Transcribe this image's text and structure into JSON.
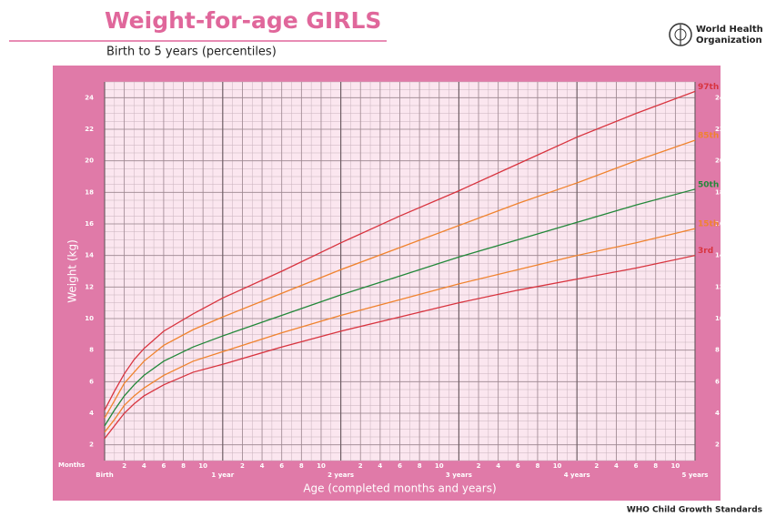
{
  "chart_data": {
    "type": "line",
    "title": "Weight-for-age GIRLS",
    "subtitle": "Birth to 5 years (percentiles)",
    "xlabel": "Age (completed months and years)",
    "ylabel": "Weight (kg)",
    "months_label": "Months",
    "x": [
      0,
      1,
      2,
      3,
      4,
      6,
      9,
      12,
      18,
      24,
      30,
      36,
      42,
      48,
      54,
      60
    ],
    "series": [
      {
        "name": "97th",
        "color": "#d8343f",
        "values": [
          4.2,
          5.4,
          6.5,
          7.4,
          8.1,
          9.2,
          10.3,
          11.3,
          13.0,
          14.8,
          16.5,
          18.1,
          19.8,
          21.5,
          23.0,
          24.4
        ]
      },
      {
        "name": "85th",
        "color": "#f0832e",
        "values": [
          3.7,
          4.8,
          5.9,
          6.6,
          7.3,
          8.3,
          9.3,
          10.1,
          11.6,
          13.1,
          14.5,
          15.9,
          17.3,
          18.6,
          20.0,
          21.3
        ]
      },
      {
        "name": "50th",
        "color": "#23883a",
        "values": [
          3.2,
          4.2,
          5.1,
          5.8,
          6.4,
          7.3,
          8.2,
          8.9,
          10.2,
          11.5,
          12.7,
          13.9,
          15.0,
          16.1,
          17.2,
          18.2
        ]
      },
      {
        "name": "15th",
        "color": "#f0832e",
        "values": [
          2.8,
          3.6,
          4.5,
          5.1,
          5.6,
          6.4,
          7.3,
          7.9,
          9.1,
          10.2,
          11.2,
          12.2,
          13.1,
          14.0,
          14.8,
          15.7
        ]
      },
      {
        "name": "3rd",
        "color": "#d8343f",
        "values": [
          2.4,
          3.2,
          4.0,
          4.6,
          5.1,
          5.8,
          6.6,
          7.1,
          8.2,
          9.2,
          10.1,
          11.0,
          11.8,
          12.5,
          13.2,
          14.0
        ]
      }
    ],
    "xlim": [
      0,
      60
    ],
    "xticks": [
      {
        "value": 0,
        "label": "Birth"
      },
      2,
      4,
      6,
      8,
      10,
      {
        "value": 12,
        "label": "1 year"
      },
      {
        "value": 14,
        "label": "2"
      },
      {
        "value": 16,
        "label": "4"
      },
      {
        "value": 18,
        "label": "6"
      },
      {
        "value": 20,
        "label": "8"
      },
      {
        "value": 22,
        "label": "10"
      },
      {
        "value": 24,
        "label": "2 years"
      },
      {
        "value": 26,
        "label": "2"
      },
      {
        "value": 28,
        "label": "4"
      },
      {
        "value": 30,
        "label": "6"
      },
      {
        "value": 32,
        "label": "8"
      },
      {
        "value": 34,
        "label": "10"
      },
      {
        "value": 36,
        "label": "3 years"
      },
      {
        "value": 38,
        "label": "2"
      },
      {
        "value": 40,
        "label": "4"
      },
      {
        "value": 42,
        "label": "6"
      },
      {
        "value": 44,
        "label": "8"
      },
      {
        "value": 46,
        "label": "10"
      },
      {
        "value": 48,
        "label": "4 years"
      },
      {
        "value": 50,
        "label": "2"
      },
      {
        "value": 52,
        "label": "4"
      },
      {
        "value": 54,
        "label": "6"
      },
      {
        "value": 56,
        "label": "8"
      },
      {
        "value": 58,
        "label": "10"
      },
      {
        "value": 60,
        "label": "5 years"
      }
    ],
    "ylim": [
      1,
      25
    ],
    "yticks": [
      2,
      4,
      6,
      8,
      10,
      12,
      14,
      16,
      18,
      20,
      22,
      24
    ],
    "grid": true
  },
  "logo_text": [
    "World Health",
    "Organization"
  ],
  "footer": "WHO Child Growth Standards"
}
